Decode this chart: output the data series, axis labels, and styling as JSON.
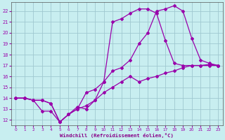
{
  "background_color": "#c8eef0",
  "grid_color": "#a0c8d0",
  "line_color": "#9900aa",
  "marker_color": "#9900aa",
  "xlabel": "Windchill (Refroidissement éolien,°C)",
  "xlabel_color": "#880088",
  "xlim": [
    -0.5,
    23.5
  ],
  "ylim": [
    11.5,
    22.8
  ],
  "xticks": [
    0,
    1,
    2,
    3,
    4,
    5,
    6,
    7,
    8,
    9,
    10,
    11,
    12,
    13,
    14,
    15,
    16,
    17,
    18,
    19,
    20,
    21,
    22,
    23
  ],
  "yticks": [
    12,
    13,
    14,
    15,
    16,
    17,
    18,
    19,
    20,
    21,
    22
  ],
  "line1_x": [
    0,
    1,
    2,
    3,
    4,
    5,
    6,
    7,
    8,
    9,
    10,
    11,
    12,
    13,
    14,
    15,
    16,
    17,
    18,
    19,
    20,
    21,
    22,
    23
  ],
  "line1_y": [
    14.0,
    14.0,
    13.8,
    13.8,
    13.5,
    11.8,
    12.5,
    13.0,
    14.5,
    14.8,
    15.5,
    16.5,
    16.8,
    17.5,
    19.0,
    20.0,
    22.0,
    22.2,
    22.5,
    22.0,
    19.5,
    17.5,
    17.2,
    17.0
  ],
  "line2_x": [
    0,
    1,
    2,
    3,
    4,
    5,
    6,
    7,
    8,
    9,
    10,
    11,
    12,
    13,
    14,
    15,
    16,
    17,
    18,
    19,
    20,
    21,
    22,
    23
  ],
  "line2_y": [
    14.0,
    14.0,
    13.8,
    12.8,
    12.8,
    11.8,
    12.5,
    13.2,
    13.0,
    13.8,
    15.5,
    21.0,
    21.3,
    21.8,
    22.2,
    22.2,
    21.8,
    19.3,
    17.2,
    17.0,
    17.0,
    17.0,
    17.0,
    17.0
  ],
  "line3_x": [
    0,
    1,
    2,
    3,
    4,
    5,
    6,
    7,
    8,
    9,
    10,
    11,
    12,
    13,
    14,
    15,
    16,
    17,
    18,
    19,
    20,
    21,
    22,
    23
  ],
  "line3_y": [
    14.0,
    14.0,
    13.8,
    13.8,
    13.5,
    11.8,
    12.5,
    13.0,
    13.3,
    13.8,
    14.5,
    15.0,
    15.5,
    16.0,
    15.5,
    15.8,
    16.0,
    16.3,
    16.5,
    16.8,
    17.0,
    17.0,
    17.1,
    17.0
  ]
}
